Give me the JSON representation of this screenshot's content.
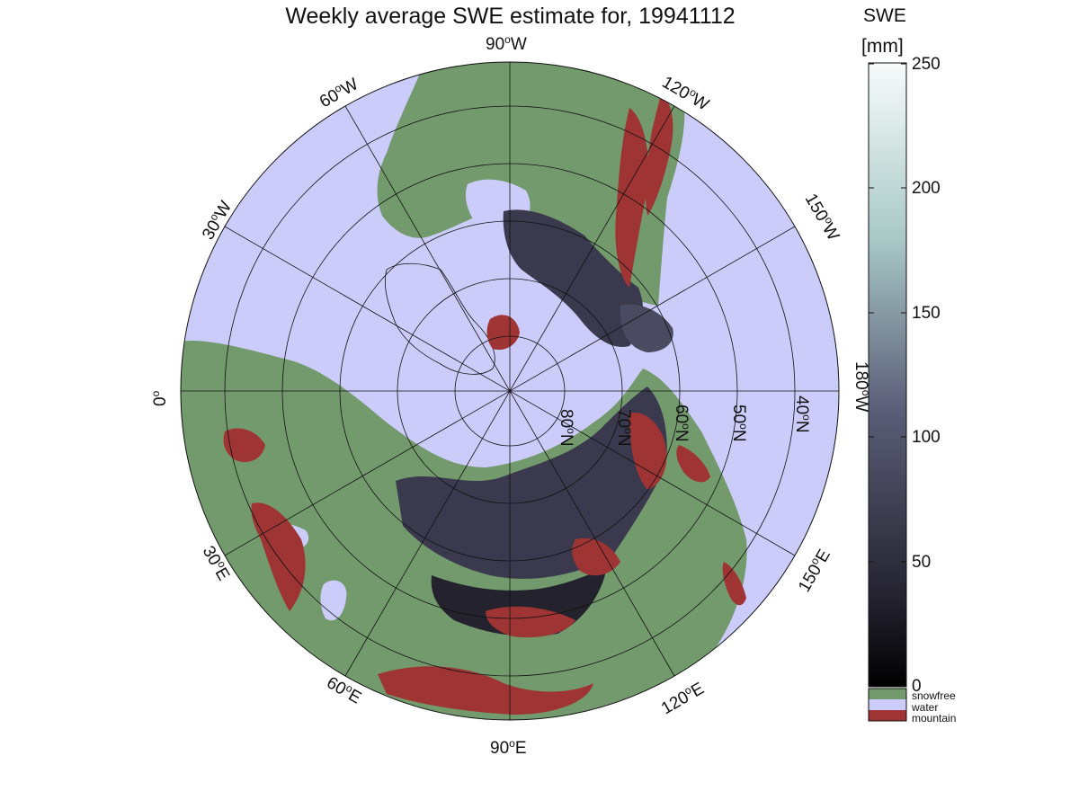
{
  "title": "Weekly average SWE estimate for, 19941112",
  "colorbar": {
    "title_line1": "SWE",
    "title_line2": "[mm]",
    "ticks": [
      "250",
      "200",
      "150",
      "100",
      "50",
      "0"
    ],
    "range": [
      0,
      250
    ],
    "colors": {
      "top": "#f7fbfa",
      "upper": "#a9c9c6",
      "mid": "#5c5f78",
      "lower": "#262431",
      "bottom": "#000000"
    }
  },
  "legend": [
    {
      "label": "snowfree",
      "color": "#739a6d"
    },
    {
      "label": "water",
      "color": "#ccccfb"
    },
    {
      "label": "mountain",
      "color": "#9e3434"
    }
  ],
  "longitude_labels": [
    {
      "base": "90",
      "deg": "o",
      "dir": "W"
    },
    {
      "base": "60",
      "deg": "o",
      "dir": "W"
    },
    {
      "base": "120",
      "deg": "o",
      "dir": "W"
    },
    {
      "base": "30",
      "deg": "o",
      "dir": "W"
    },
    {
      "base": "150",
      "deg": "o",
      "dir": "W"
    },
    {
      "base": "0",
      "deg": "o",
      "dir": ""
    },
    {
      "base": "180",
      "deg": "o",
      "dir": "W"
    },
    {
      "base": "30",
      "deg": "o",
      "dir": "E"
    },
    {
      "base": "150",
      "deg": "o",
      "dir": "E"
    },
    {
      "base": "60",
      "deg": "o",
      "dir": "E"
    },
    {
      "base": "120",
      "deg": "o",
      "dir": "E"
    },
    {
      "base": "90",
      "deg": "o",
      "dir": "E"
    }
  ],
  "latitude_labels": [
    {
      "base": "80",
      "deg": "o",
      "dir": "N"
    },
    {
      "base": "70",
      "deg": "o",
      "dir": "N"
    },
    {
      "base": "60",
      "deg": "o",
      "dir": "N"
    },
    {
      "base": "50",
      "deg": "o",
      "dir": "N"
    },
    {
      "base": "40",
      "deg": "o",
      "dir": "N"
    }
  ]
}
